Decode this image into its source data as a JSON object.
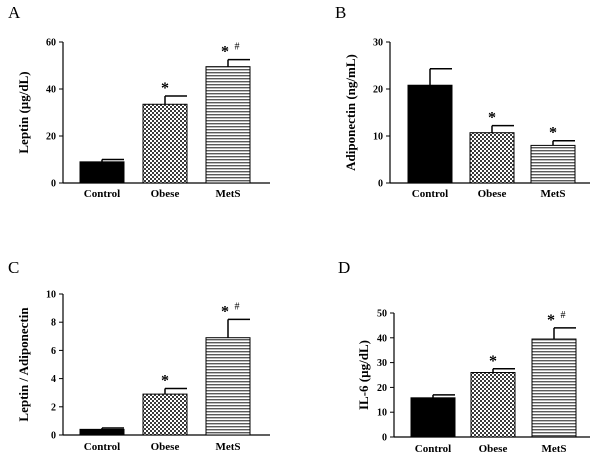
{
  "chart_data": [
    {
      "panel": "A",
      "type": "bar",
      "ylabel": "Leptin (µg/dL)",
      "categories": [
        "Control",
        "Obese",
        "MetS"
      ],
      "values": [
        9,
        33.5,
        49.5
      ],
      "errors": [
        1,
        3.5,
        3
      ],
      "yticks": [
        "0",
        "20",
        "40",
        "60"
      ],
      "ylim": [
        0,
        60
      ],
      "annotations": [
        {
          "category": "Obese",
          "star": "*",
          "hash": ""
        },
        {
          "category": "MetS",
          "star": "*",
          "hash": "#"
        }
      ]
    },
    {
      "panel": "B",
      "type": "bar",
      "ylabel": "Adiponectin (ng/mL)",
      "categories": [
        "Control",
        "Obese",
        "MetS"
      ],
      "values": [
        20.8,
        10.7,
        8
      ],
      "errors": [
        3.5,
        1.5,
        1
      ],
      "yticks": [
        "0",
        "10",
        "20",
        "30"
      ],
      "ylim": [
        0,
        30
      ],
      "annotations": [
        {
          "category": "Obese",
          "star": "*",
          "hash": ""
        },
        {
          "category": "MetS",
          "star": "*",
          "hash": ""
        }
      ]
    },
    {
      "panel": "C",
      "type": "bar",
      "ylabel": "Leptin / Adiponectin",
      "categories": [
        "Control",
        "Obese",
        "MetS"
      ],
      "values": [
        0.4,
        2.9,
        6.9
      ],
      "errors": [
        0.1,
        0.4,
        1.3
      ],
      "yticks": [
        "0",
        "2",
        "4",
        "6",
        "8",
        "10"
      ],
      "ylim": [
        0,
        10
      ],
      "annotations": [
        {
          "category": "Obese",
          "star": "*",
          "hash": ""
        },
        {
          "category": "MetS",
          "star": "*",
          "hash": "#"
        }
      ]
    },
    {
      "panel": "D",
      "type": "bar",
      "ylabel": "IL-6 (µg/dL)",
      "categories": [
        "Control",
        "Obese",
        "MetS"
      ],
      "values": [
        15.8,
        26,
        39.5
      ],
      "errors": [
        1.2,
        1.5,
        4.5
      ],
      "yticks": [
        "0",
        "10",
        "20",
        "30",
        "40",
        "50"
      ],
      "ylim": [
        0,
        50
      ],
      "annotations": [
        {
          "category": "Obese",
          "star": "*",
          "hash": ""
        },
        {
          "category": "MetS",
          "star": "*",
          "hash": "#"
        }
      ]
    }
  ],
  "colors": {
    "control": "#000000",
    "axis": "#000000",
    "fill_bg": "#ffffff",
    "hatch_check": "#3a3a3a",
    "hatch_stripe": "#5a5a5a"
  }
}
